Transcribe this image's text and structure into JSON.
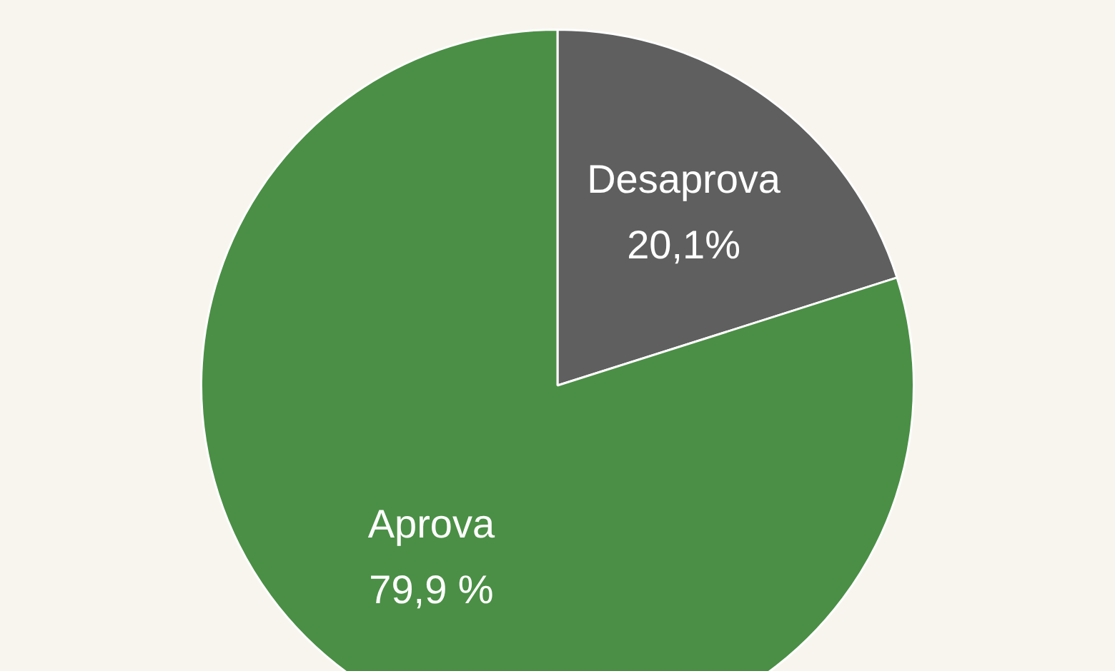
{
  "chart_data": {
    "type": "pie",
    "categories": [
      "Desaprova",
      "Aprova"
    ],
    "values": [
      20.1,
      79.9
    ],
    "colors": [
      "#5f5f5f",
      "#4a8f45"
    ],
    "value_labels": [
      "20,1%",
      "79,9 %"
    ],
    "legend": false
  }
}
